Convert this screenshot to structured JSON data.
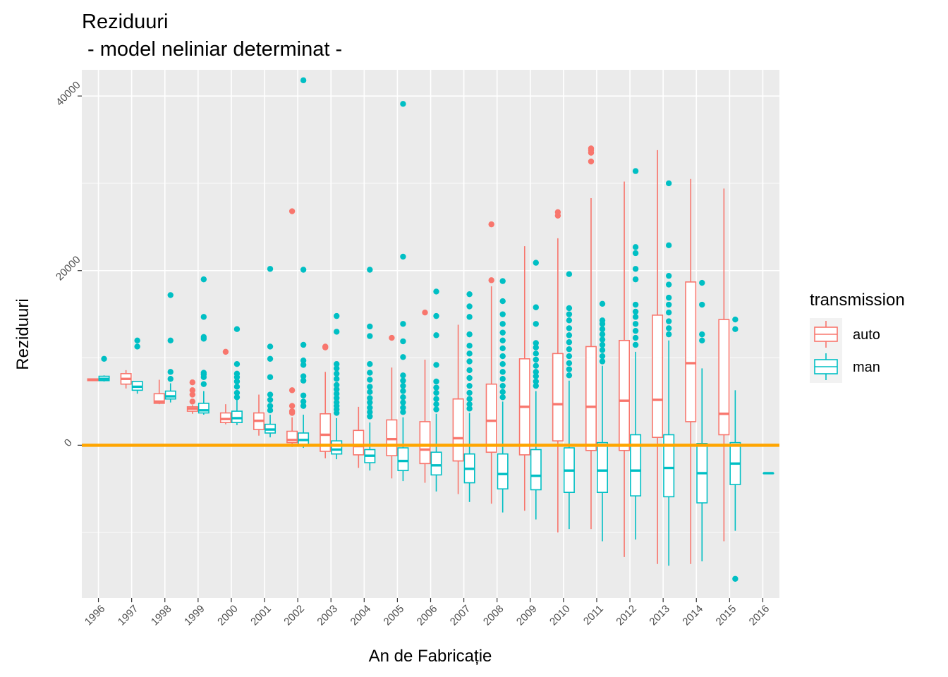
{
  "chart_data": {
    "type": "boxplot",
    "title_line1": "Reziduuri",
    "title_line2": " - model neliniar determinat -",
    "xlabel": "An de Fabricație",
    "ylabel": "Reziduuri",
    "ylim": [
      -17500,
      43000
    ],
    "y_ticks": [
      0,
      20000,
      40000
    ],
    "y_minor_ticks": [
      -10000,
      10000,
      30000
    ],
    "reference_line": {
      "y": 0,
      "color": "#FFA500"
    },
    "legend": {
      "title": "transmission",
      "position": "right"
    },
    "categories": [
      "1996",
      "1997",
      "1998",
      "1999",
      "2000",
      "2001",
      "2002",
      "2003",
      "2004",
      "2005",
      "2006",
      "2007",
      "2008",
      "2009",
      "2010",
      "2011",
      "2012",
      "2013",
      "2014",
      "2015",
      "2016"
    ],
    "series": [
      {
        "name": "auto",
        "color": "#F8766D",
        "boxes": [
          {
            "cat": "1996",
            "min": 7400,
            "q1": 7400,
            "med": 7500,
            "q3": 7600,
            "max": 7600,
            "outliers": []
          },
          {
            "cat": "1997",
            "min": 6500,
            "q1": 7000,
            "med": 7600,
            "q3": 8200,
            "max": 8600,
            "outliers": []
          },
          {
            "cat": "1998",
            "min": 4700,
            "q1": 4800,
            "med": 5000,
            "q3": 5900,
            "max": 7500,
            "outliers": []
          },
          {
            "cat": "1999",
            "min": 3600,
            "q1": 3900,
            "med": 4200,
            "q3": 4400,
            "max": 4600,
            "outliers": [
              5000,
              5800,
              6300,
              7200
            ]
          },
          {
            "cat": "2000",
            "min": 2400,
            "q1": 2600,
            "med": 3000,
            "q3": 3700,
            "max": 4700,
            "outliers": [
              10700
            ]
          },
          {
            "cat": "2001",
            "min": 1100,
            "q1": 1800,
            "med": 2800,
            "q3": 3700,
            "max": 5800,
            "outliers": []
          },
          {
            "cat": "2002",
            "min": -200,
            "q1": 300,
            "med": 600,
            "q3": 1600,
            "max": 3200,
            "outliers": [
              3700,
              3900,
              4500,
              6300,
              26800
            ]
          },
          {
            "cat": "2003",
            "min": -1500,
            "q1": -700,
            "med": 1200,
            "q3": 3600,
            "max": 8400,
            "outliers": [
              11200,
              11300
            ]
          },
          {
            "cat": "2004",
            "min": -2600,
            "q1": -1100,
            "med": -100,
            "q3": 1700,
            "max": 4400,
            "outliers": []
          },
          {
            "cat": "2005",
            "min": -3800,
            "q1": -1200,
            "med": 700,
            "q3": 2900,
            "max": 8900,
            "outliers": [
              12300
            ]
          },
          {
            "cat": "2006",
            "min": -4300,
            "q1": -2100,
            "med": -500,
            "q3": 2700,
            "max": 9800,
            "outliers": [
              15200
            ]
          },
          {
            "cat": "2007",
            "min": -5600,
            "q1": -1800,
            "med": 800,
            "q3": 5300,
            "max": 13800,
            "outliers": []
          },
          {
            "cat": "2008",
            "min": -6700,
            "q1": -800,
            "med": 2800,
            "q3": 7000,
            "max": 18200,
            "outliers": [
              18900,
              25300
            ]
          },
          {
            "cat": "2009",
            "min": -7500,
            "q1": -1100,
            "med": 4400,
            "q3": 9900,
            "max": 22800,
            "outliers": []
          },
          {
            "cat": "2010",
            "min": -10000,
            "q1": 500,
            "med": 4700,
            "q3": 10500,
            "max": 23700,
            "outliers": [
              26300,
              26700
            ]
          },
          {
            "cat": "2011",
            "min": -9600,
            "q1": -600,
            "med": 4400,
            "q3": 11300,
            "max": 28300,
            "outliers": [
              32500,
              33500,
              33800,
              34000
            ]
          },
          {
            "cat": "2012",
            "min": -12800,
            "q1": -600,
            "med": 5100,
            "q3": 12000,
            "max": 30200,
            "outliers": []
          },
          {
            "cat": "2013",
            "min": -13600,
            "q1": 900,
            "med": 5200,
            "q3": 14900,
            "max": 33800,
            "outliers": []
          },
          {
            "cat": "2014",
            "min": -13600,
            "q1": 2700,
            "med": 9400,
            "q3": 18700,
            "max": 30500,
            "outliers": []
          },
          {
            "cat": "2015",
            "min": -11000,
            "q1": 1200,
            "med": 3600,
            "q3": 14400,
            "max": 29400,
            "outliers": []
          }
        ]
      },
      {
        "name": "man",
        "color": "#00BFC4",
        "boxes": [
          {
            "cat": "1996",
            "min": 7300,
            "q1": 7400,
            "med": 7600,
            "q3": 7900,
            "max": 8000,
            "outliers": [
              9900
            ]
          },
          {
            "cat": "1997",
            "min": 5900,
            "q1": 6300,
            "med": 6700,
            "q3": 7300,
            "max": 7300,
            "outliers": [
              11300,
              12000
            ]
          },
          {
            "cat": "1998",
            "min": 4900,
            "q1": 5300,
            "med": 5600,
            "q3": 6200,
            "max": 7100,
            "outliers": [
              7600,
              8400,
              12000,
              17200
            ]
          },
          {
            "cat": "1999",
            "min": 3500,
            "q1": 3700,
            "med": 4000,
            "q3": 4800,
            "max": 6200,
            "outliers": [
              7000,
              7800,
              8100,
              8300,
              12200,
              12400,
              14700,
              19000
            ]
          },
          {
            "cat": "2000",
            "min": 2300,
            "q1": 2600,
            "med": 3100,
            "q3": 3900,
            "max": 5300,
            "outliers": [
              5500,
              6000,
              6700,
              7300,
              7800,
              8200,
              9300,
              13300
            ]
          },
          {
            "cat": "2001",
            "min": 900,
            "q1": 1400,
            "med": 1800,
            "q3": 2400,
            "max": 3500,
            "outliers": [
              4000,
              4500,
              5200,
              5800,
              7800,
              9900,
              11300,
              20200
            ]
          },
          {
            "cat": "2002",
            "min": -300,
            "q1": 100,
            "med": 600,
            "q3": 1400,
            "max": 3500,
            "outliers": [
              4500,
              5000,
              5700,
              7400,
              7900,
              9200,
              9700,
              11500,
              20100,
              41800
            ]
          },
          {
            "cat": "2003",
            "min": -1600,
            "q1": -1000,
            "med": -500,
            "q3": 500,
            "max": 3100,
            "outliers": [
              3700,
              4100,
              4500,
              4900,
              5400,
              5900,
              6400,
              6900,
              7600,
              8200,
              8800,
              9300,
              13000,
              14800
            ]
          },
          {
            "cat": "2004",
            "min": -2900,
            "q1": -2000,
            "med": -1200,
            "q3": -500,
            "max": 2600,
            "outliers": [
              3300,
              3800,
              4300,
              4900,
              5400,
              6100,
              6700,
              7500,
              8300,
              9300,
              12500,
              13600,
              20100
            ]
          },
          {
            "cat": "2005",
            "min": -4100,
            "q1": -2900,
            "med": -1800,
            "q3": -300,
            "max": 3200,
            "outliers": [
              3800,
              4300,
              4900,
              5500,
              6200,
              6800,
              7400,
              8000,
              10100,
              11900,
              13900,
              21600,
              39100
            ]
          },
          {
            "cat": "2006",
            "min": -5300,
            "q1": -3400,
            "med": -2300,
            "q3": -800,
            "max": 3600,
            "outliers": [
              4100,
              4700,
              5300,
              6000,
              6600,
              7300,
              9200,
              12600,
              14800,
              17600
            ]
          },
          {
            "cat": "2007",
            "min": -6500,
            "q1": -4300,
            "med": -2700,
            "q3": -1000,
            "max": 3700,
            "outliers": [
              4200,
              4700,
              5300,
              6000,
              6800,
              7700,
              8600,
              9600,
              10500,
              11400,
              12700,
              14700,
              15900,
              17300
            ]
          },
          {
            "cat": "2008",
            "min": -7700,
            "q1": -5000,
            "med": -3300,
            "q3": -1000,
            "max": 5000,
            "outliers": [
              5500,
              6100,
              6800,
              7600,
              8400,
              9300,
              10200,
              11100,
              12000,
              12900,
              13900,
              15000,
              16500,
              18800
            ]
          },
          {
            "cat": "2009",
            "min": -8500,
            "q1": -5100,
            "med": -3500,
            "q3": -500,
            "max": 6200,
            "outliers": [
              6800,
              7300,
              7900,
              8400,
              9100,
              9800,
              10500,
              11200,
              11700,
              13900,
              15800,
              20900
            ]
          },
          {
            "cat": "2010",
            "min": -9600,
            "q1": -5400,
            "med": -2900,
            "q3": -300,
            "max": 7400,
            "outliers": [
              8000,
              8700,
              9400,
              10200,
              11000,
              11800,
              12600,
              13400,
              14300,
              15000,
              15700,
              19600
            ]
          },
          {
            "cat": "2011",
            "min": -11000,
            "q1": -5400,
            "med": -2900,
            "q3": 300,
            "max": 9100,
            "outliers": [
              9600,
              10200,
              10900,
              11500,
              12100,
              12700,
              13300,
              13900,
              14300,
              16200
            ]
          },
          {
            "cat": "2012",
            "min": -10800,
            "q1": -5800,
            "med": -2900,
            "q3": 1200,
            "max": 10700,
            "outliers": [
              11500,
              12300,
              13100,
              13900,
              14700,
              15300,
              16100,
              19000,
              20200,
              22000,
              22700,
              31400
            ]
          },
          {
            "cat": "2013",
            "min": -13800,
            "q1": -5900,
            "med": -2600,
            "q3": 1200,
            "max": 12000,
            "outliers": [
              12700,
              13400,
              14200,
              15200,
              16100,
              16900,
              18400,
              19400,
              22900,
              30000
            ]
          },
          {
            "cat": "2014",
            "min": -13300,
            "q1": -6600,
            "med": -3200,
            "q3": 200,
            "max": 8800,
            "outliers": [
              12000,
              12700,
              16100,
              18600
            ]
          },
          {
            "cat": "2015",
            "min": -9800,
            "q1": -4500,
            "med": -2100,
            "q3": 300,
            "max": 6300,
            "outliers": [
              13300,
              14400,
              -15300
            ]
          },
          {
            "cat": "2016",
            "min": -3200,
            "q1": -3200,
            "med": -3200,
            "q3": -3200,
            "max": -3200,
            "outliers": []
          }
        ]
      }
    ]
  }
}
